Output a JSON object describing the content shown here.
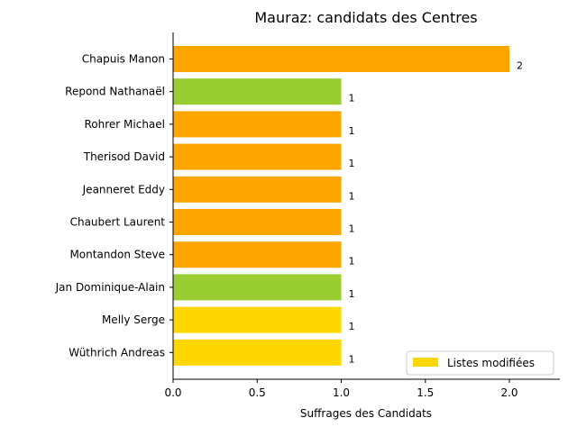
{
  "chart_data": {
    "type": "bar",
    "orientation": "horizontal",
    "title": "Mauraz: candidats des Centres",
    "xlabel": "Suffrages des Candidats",
    "ylabel": "",
    "xlim": [
      0,
      2.3
    ],
    "xticks": [
      "0.0",
      "0.5",
      "1.0",
      "1.5",
      "2.0"
    ],
    "xtick_values": [
      0,
      0.5,
      1.0,
      1.5,
      2.0
    ],
    "grid": false,
    "categories": [
      "Chapuis Manon",
      "Repond Nathanaël",
      "Rohrer Michael",
      "Therisod David",
      "Jeanneret Eddy",
      "Chaubert Laurent",
      "Montandon Steve",
      "Jan Dominique-Alain",
      "Melly Serge",
      "Wüthrich Andreas"
    ],
    "values": [
      2,
      1,
      1,
      1,
      1,
      1,
      1,
      1,
      1,
      1
    ],
    "value_labels": [
      "2",
      "1",
      "1",
      "1",
      "1",
      "1",
      "1",
      "1",
      "1",
      "1"
    ],
    "colors": [
      "#FFA500",
      "#9ACD32",
      "#FFA500",
      "#FFA500",
      "#FFA500",
      "#FFA500",
      "#FFA500",
      "#9ACD32",
      "#FFD700",
      "#FFD700"
    ],
    "legend": {
      "placement": "lower-right",
      "entries": [
        {
          "label": "Listes modifiées",
          "color": "#FFD700"
        }
      ]
    }
  }
}
